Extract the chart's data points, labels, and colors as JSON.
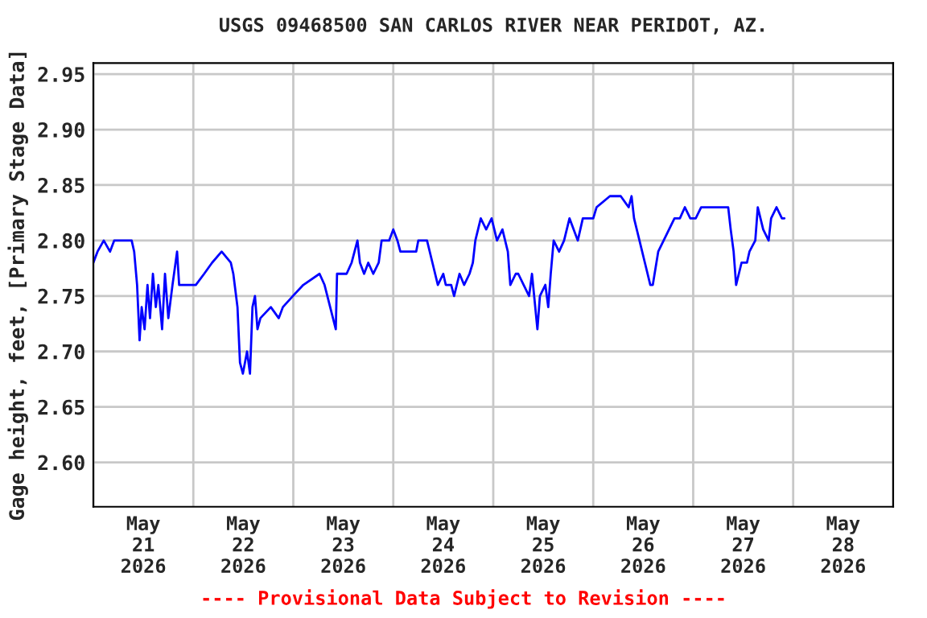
{
  "chart_data": {
    "type": "line",
    "title": "USGS 09468500 SAN CARLOS RIVER NEAR PERIDOT, AZ.",
    "ylabel": "Gage height, feet, [Primary Stage Data]",
    "annotations": [
      "---- Provisional Data Subject to Revision ----"
    ],
    "xlim": [
      "2026-05-21T00:00",
      "2026-05-29T00:00"
    ],
    "xticks": [
      {
        "value": "2026-05-21T00:00",
        "label": null
      },
      {
        "value": "2026-05-21T12:00",
        "label": "May\n21\n2026"
      },
      {
        "value": "2026-05-22T00:00",
        "label": null
      },
      {
        "value": "2026-05-22T12:00",
        "label": "May\n22\n2026"
      },
      {
        "value": "2026-05-23T00:00",
        "label": null
      },
      {
        "value": "2026-05-23T12:00",
        "label": "May\n23\n2026"
      },
      {
        "value": "2026-05-24T00:00",
        "label": null
      },
      {
        "value": "2026-05-24T12:00",
        "label": "May\n24\n2026"
      },
      {
        "value": "2026-05-25T00:00",
        "label": null
      },
      {
        "value": "2026-05-25T12:00",
        "label": "May\n25\n2026"
      },
      {
        "value": "2026-05-26T00:00",
        "label": null
      },
      {
        "value": "2026-05-26T12:00",
        "label": "May\n26\n2026"
      },
      {
        "value": "2026-05-27T00:00",
        "label": null
      },
      {
        "value": "2026-05-27T12:00",
        "label": "May\n27\n2026"
      },
      {
        "value": "2026-05-28T00:00",
        "label": null
      },
      {
        "value": "2026-05-28T12:00",
        "label": "May\n28\n2026"
      },
      {
        "value": "2026-05-29T00:00",
        "label": null
      }
    ],
    "ylim": [
      2.56,
      2.96
    ],
    "yticks": [
      {
        "value": 2.6,
        "label": "2.60"
      },
      {
        "value": 2.65,
        "label": "2.65"
      },
      {
        "value": 2.7,
        "label": "2.70"
      },
      {
        "value": 2.75,
        "label": "2.75"
      },
      {
        "value": 2.8,
        "label": "2.80"
      },
      {
        "value": 2.85,
        "label": "2.85"
      },
      {
        "value": 2.9,
        "label": "2.90"
      },
      {
        "value": 2.95,
        "label": "2.95"
      }
    ],
    "grid": true,
    "series": [
      {
        "color": "#0000ff",
        "x": [
          "2026-05-21T00:00",
          "2026-05-21T01:00",
          "2026-05-21T02:30",
          "2026-05-21T04:00",
          "2026-05-21T05:00",
          "2026-05-21T09:12",
          "2026-05-21T09:48",
          "2026-05-21T10:30",
          "2026-05-21T11:06",
          "2026-05-21T11:36",
          "2026-05-21T12:18",
          "2026-05-21T13:00",
          "2026-05-21T13:36",
          "2026-05-21T14:18",
          "2026-05-21T15:00",
          "2026-05-21T15:36",
          "2026-05-21T16:30",
          "2026-05-21T17:12",
          "2026-05-21T18:00",
          "2026-05-21T19:00",
          "2026-05-21T20:06",
          "2026-05-21T20:36",
          "2026-05-21T21:24",
          "2026-05-22T00:36",
          "2026-05-22T02:36",
          "2026-05-22T04:30",
          "2026-05-22T06:48",
          "2026-05-22T09:00",
          "2026-05-22T09:36",
          "2026-05-22T10:36",
          "2026-05-22T11:12",
          "2026-05-22T11:54",
          "2026-05-22T12:54",
          "2026-05-22T13:36",
          "2026-05-22T14:12",
          "2026-05-22T14:48",
          "2026-05-22T15:24",
          "2026-05-22T16:06",
          "2026-05-22T18:36",
          "2026-05-22T20:30",
          "2026-05-22T21:30",
          "2026-05-22T23:54",
          "2026-05-23T02:24",
          "2026-05-23T06:18",
          "2026-05-23T07:30",
          "2026-05-23T10:12",
          "2026-05-23T10:30",
          "2026-05-23T12:48",
          "2026-05-23T14:00",
          "2026-05-23T15:24",
          "2026-05-23T16:00",
          "2026-05-23T17:00",
          "2026-05-23T18:00",
          "2026-05-23T19:12",
          "2026-05-23T20:30",
          "2026-05-23T21:12",
          "2026-05-23T23:00",
          "2026-05-24T00:00",
          "2026-05-24T01:00",
          "2026-05-24T01:42",
          "2026-05-24T05:30",
          "2026-05-24T06:00",
          "2026-05-24T08:06",
          "2026-05-24T09:24",
          "2026-05-24T10:42",
          "2026-05-24T12:00",
          "2026-05-24T12:36",
          "2026-05-24T13:54",
          "2026-05-24T14:36",
          "2026-05-24T15:54",
          "2026-05-24T17:00",
          "2026-05-24T18:18",
          "2026-05-24T19:06",
          "2026-05-24T19:42",
          "2026-05-24T21:00",
          "2026-05-24T22:18",
          "2026-05-24T23:36",
          "2026-05-25T00:54",
          "2026-05-25T02:12",
          "2026-05-25T03:30",
          "2026-05-25T04:06",
          "2026-05-25T05:24",
          "2026-05-25T06:00",
          "2026-05-25T07:18",
          "2026-05-25T08:36",
          "2026-05-25T09:18",
          "2026-05-25T10:36",
          "2026-05-25T11:12",
          "2026-05-25T12:30",
          "2026-05-25T13:12",
          "2026-05-25T13:48",
          "2026-05-25T14:30",
          "2026-05-25T15:48",
          "2026-05-25T17:00",
          "2026-05-25T18:18",
          "2026-05-25T20:18",
          "2026-05-25T21:30",
          "2026-05-26T00:00",
          "2026-05-26T00:48",
          "2026-05-26T04:00",
          "2026-05-26T06:36",
          "2026-05-26T08:30",
          "2026-05-26T09:12",
          "2026-05-26T09:48",
          "2026-05-26T11:06",
          "2026-05-26T12:24",
          "2026-05-26T13:42",
          "2026-05-26T14:18",
          "2026-05-26T15:36",
          "2026-05-26T16:54",
          "2026-05-26T18:12",
          "2026-05-26T19:30",
          "2026-05-26T20:48",
          "2026-05-26T22:00",
          "2026-05-26T23:18",
          "2026-05-27T00:36",
          "2026-05-27T01:54",
          "2026-05-27T08:24",
          "2026-05-27T09:00",
          "2026-05-27T09:42",
          "2026-05-27T10:18",
          "2026-05-27T11:36",
          "2026-05-27T12:54",
          "2026-05-27T13:30",
          "2026-05-27T14:54",
          "2026-05-27T15:30",
          "2026-05-27T16:48",
          "2026-05-27T18:06",
          "2026-05-27T18:42",
          "2026-05-27T20:00",
          "2026-05-27T21:18",
          "2026-05-27T21:54"
        ],
        "values": [
          2.78,
          2.79,
          2.8,
          2.79,
          2.8,
          2.8,
          2.79,
          2.76,
          2.71,
          2.74,
          2.72,
          2.76,
          2.73,
          2.77,
          2.74,
          2.76,
          2.72,
          2.77,
          2.73,
          2.76,
          2.79,
          2.76,
          2.76,
          2.76,
          2.77,
          2.78,
          2.79,
          2.78,
          2.77,
          2.74,
          2.69,
          2.68,
          2.7,
          2.68,
          2.74,
          2.75,
          2.72,
          2.73,
          2.74,
          2.73,
          2.74,
          2.75,
          2.76,
          2.77,
          2.76,
          2.72,
          2.77,
          2.77,
          2.78,
          2.8,
          2.78,
          2.77,
          2.78,
          2.77,
          2.78,
          2.8,
          2.8,
          2.81,
          2.8,
          2.79,
          2.79,
          2.8,
          2.8,
          2.78,
          2.76,
          2.77,
          2.76,
          2.76,
          2.75,
          2.77,
          2.76,
          2.77,
          2.78,
          2.8,
          2.82,
          2.81,
          2.82,
          2.8,
          2.81,
          2.79,
          2.76,
          2.77,
          2.77,
          2.76,
          2.75,
          2.77,
          2.72,
          2.75,
          2.76,
          2.74,
          2.77,
          2.8,
          2.79,
          2.8,
          2.82,
          2.8,
          2.82,
          2.82,
          2.83,
          2.84,
          2.84,
          2.83,
          2.84,
          2.82,
          2.8,
          2.78,
          2.76,
          2.76,
          2.79,
          2.8,
          2.81,
          2.82,
          2.82,
          2.83,
          2.82,
          2.82,
          2.83,
          2.83,
          2.81,
          2.79,
          2.76,
          2.78,
          2.78,
          2.79,
          2.8,
          2.83,
          2.81,
          2.8,
          2.82,
          2.83,
          2.82,
          2.82
        ]
      }
    ]
  }
}
